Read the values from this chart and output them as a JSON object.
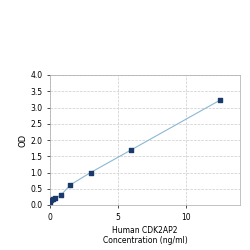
{
  "title": "",
  "xlabel_line1": "Human CDK2AP2",
  "xlabel_line2": "Concentration (ng/ml)",
  "ylabel": "OD",
  "x_data": [
    0.0,
    0.1,
    0.2,
    0.4,
    0.8,
    1.5,
    3.0,
    6.0,
    12.5
  ],
  "y_data": [
    0.1,
    0.15,
    0.18,
    0.22,
    0.3,
    0.62,
    1.0,
    1.7,
    3.22
  ],
  "line_color": "#8ab8d4",
  "marker_color": "#1a3a6b",
  "marker_style": "s",
  "marker_size": 3.5,
  "xlim": [
    0,
    14
  ],
  "ylim": [
    0,
    4
  ],
  "yticks": [
    0,
    0.5,
    1.0,
    1.5,
    2.0,
    2.5,
    3.0,
    3.5,
    4.0
  ],
  "xticks": [
    0,
    5,
    10
  ],
  "grid_color": "#cccccc",
  "grid_style": "--",
  "bg_color": "#ffffff",
  "fig_bg": "#ffffff",
  "ylabel_fontsize": 6,
  "xlabel_fontsize": 5.5,
  "tick_fontsize": 5.5
}
